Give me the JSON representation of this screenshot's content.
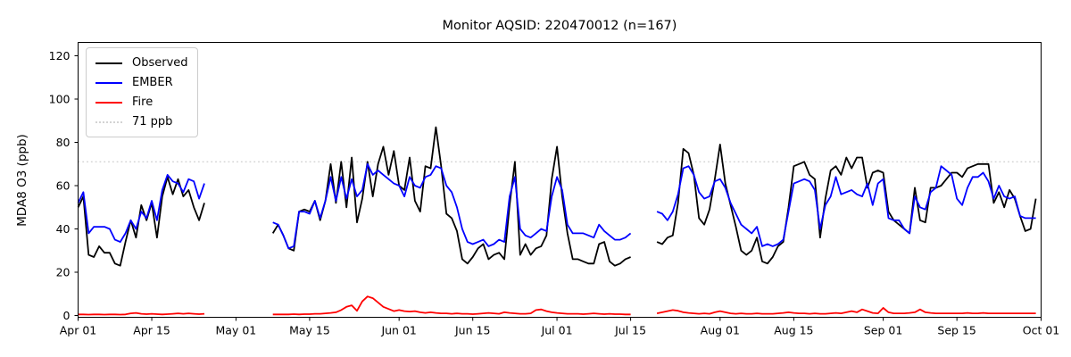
{
  "chart_data": {
    "type": "line",
    "title": "Monitor AQSID: 220470012 (n=167)",
    "xlabel": "",
    "ylabel": "MDA8 O3 (ppb)",
    "n_points": 167,
    "ylim": [
      -1,
      126
    ],
    "yticks": [
      0,
      20,
      40,
      60,
      80,
      100,
      120
    ],
    "xticks": [
      {
        "day": 0,
        "label": "Apr 01"
      },
      {
        "day": 14,
        "label": "Apr 15"
      },
      {
        "day": 30,
        "label": "May 01"
      },
      {
        "day": 44,
        "label": "May 15"
      },
      {
        "day": 61,
        "label": "Jun 01"
      },
      {
        "day": 75,
        "label": "Jun 15"
      },
      {
        "day": 91,
        "label": "Jul 01"
      },
      {
        "day": 105,
        "label": "Jul 15"
      },
      {
        "day": 122,
        "label": "Aug 01"
      },
      {
        "day": 136,
        "label": "Aug 15"
      },
      {
        "day": 153,
        "label": "Sep 01"
      },
      {
        "day": 167,
        "label": "Sep 15"
      },
      {
        "day": 183,
        "label": "Oct 01"
      }
    ],
    "grid": false,
    "legend_position": "upper left",
    "legend": {
      "items": [
        {
          "label": "Observed",
          "color": "#000000",
          "line_style": "solid"
        },
        {
          "label": "EMBER",
          "color": "#0000ff",
          "line_style": "solid"
        },
        {
          "label": "Fire",
          "color": "#ff0000",
          "line_style": "solid"
        },
        {
          "label": "71 ppb",
          "color": "#d3d3d3",
          "line_style": "dotted"
        }
      ]
    },
    "threshold": {
      "value": 71,
      "label": "71 ppb",
      "color": "#d3d3d3",
      "style": "dotted"
    },
    "series": [
      {
        "name": "Observed",
        "color": "#000000",
        "segments": [
          {
            "start_day": 0,
            "start_date": "Apr 01",
            "values": [
              50,
              55,
              28,
              27,
              32,
              29,
              29,
              24,
              23,
              34,
              44,
              36,
              51,
              44,
              52,
              36,
              55,
              64,
              56,
              63,
              55,
              58,
              50,
              44,
              52
            ]
          },
          {
            "start_day": 37,
            "start_date": "May 08",
            "values": [
              38,
              42,
              37,
              31,
              30,
              48,
              49,
              48,
              53,
              44,
              53,
              70,
              52,
              71,
              50,
              73,
              43,
              54,
              71,
              55,
              70,
              78,
              65,
              76,
              60,
              58,
              73,
              53,
              48,
              69,
              68,
              87,
              69,
              47,
              45,
              39,
              26,
              24,
              27,
              31,
              33,
              26,
              28,
              29,
              26,
              51,
              71,
              28,
              33,
              28,
              31,
              32,
              37,
              63,
              78,
              55,
              38,
              26,
              26,
              25,
              24,
              24,
              33,
              34,
              25,
              23,
              24,
              26,
              27
            ]
          },
          {
            "start_day": 110,
            "start_date": "Jul 20",
            "values": [
              34,
              33,
              36,
              37,
              52,
              77,
              75,
              65,
              45,
              42,
              49,
              63,
              79,
              61,
              51,
              41,
              30,
              28,
              30,
              36,
              25,
              24,
              27,
              32,
              34,
              50,
              69,
              70,
              71,
              65,
              63,
              36,
              54,
              67,
              69,
              65,
              73,
              68,
              73,
              73,
              59,
              66,
              67,
              66,
              48,
              44,
              42,
              40,
              38,
              59,
              44,
              43,
              59,
              59,
              60,
              63,
              66,
              66,
              64,
              68,
              69,
              70,
              70,
              70,
              52,
              57,
              50,
              58,
              54,
              46,
              39,
              40,
              54
            ]
          }
        ]
      },
      {
        "name": "EMBER",
        "color": "#0000ff",
        "segments": [
          {
            "start_day": 0,
            "start_date": "Apr 01",
            "values": [
              52,
              57,
              38,
              41,
              41,
              41,
              40,
              35,
              34,
              38,
              44,
              40,
              48,
              45,
              53,
              44,
              58,
              65,
              62,
              61,
              57,
              63,
              62,
              54,
              61
            ]
          },
          {
            "start_day": 37,
            "start_date": "May 08",
            "values": [
              43,
              42,
              37,
              31,
              32,
              48,
              48,
              47,
              53,
              45,
              53,
              64,
              53,
              64,
              54,
              63,
              55,
              58,
              70,
              65,
              67,
              65,
              63,
              61,
              60,
              55,
              64,
              60,
              59,
              64,
              65,
              69,
              68,
              60,
              57,
              50,
              40,
              34,
              33,
              34,
              35,
              32,
              33,
              35,
              34,
              55,
              64,
              40,
              37,
              36,
              38,
              40,
              39,
              55,
              64,
              58,
              42,
              38,
              38,
              38,
              37,
              36,
              42,
              39,
              37,
              35,
              35,
              36,
              38
            ]
          },
          {
            "start_day": 110,
            "start_date": "Jul 20",
            "values": [
              48,
              47,
              44,
              48,
              56,
              68,
              69,
              65,
              57,
              54,
              55,
              62,
              63,
              59,
              52,
              47,
              42,
              40,
              38,
              41,
              32,
              33,
              32,
              33,
              35,
              48,
              61,
              62,
              63,
              62,
              58,
              40,
              51,
              55,
              64,
              56,
              57,
              58,
              56,
              55,
              61,
              51,
              61,
              63,
              45,
              44,
              44,
              40,
              38,
              55,
              50,
              49,
              57,
              59,
              69,
              67,
              65,
              54,
              51,
              59,
              64,
              64,
              66,
              62,
              54,
              60,
              55,
              54,
              55,
              46,
              45,
              45,
              45
            ]
          }
        ]
      },
      {
        "name": "Fire",
        "color": "#ff0000",
        "segments": [
          {
            "start_day": 0,
            "start_date": "Apr 01",
            "values": [
              0.5,
              0.5,
              0.4,
              0.5,
              0.5,
              0.4,
              0.5,
              0.5,
              0.4,
              0.5,
              1.0,
              1.2,
              0.8,
              0.6,
              0.8,
              0.6,
              0.5,
              0.6,
              0.8,
              1.0,
              0.8,
              1.0,
              0.8,
              0.6,
              0.8
            ]
          },
          {
            "start_day": 37,
            "start_date": "May 08",
            "values": [
              0.5,
              0.5,
              0.5,
              0.5,
              0.6,
              0.5,
              0.6,
              0.6,
              0.8,
              0.8,
              1.0,
              1.2,
              1.5,
              2.5,
              4.0,
              4.7,
              2.2,
              6.5,
              8.8,
              8.0,
              6.0,
              4.0,
              3.0,
              2.0,
              2.5,
              2.0,
              1.8,
              2.0,
              1.5,
              1.2,
              1.5,
              1.2,
              1.0,
              1.0,
              0.8,
              1.0,
              0.8,
              0.8,
              0.6,
              0.8,
              1.0,
              1.2,
              1.0,
              0.8,
              1.5,
              1.2,
              1.0,
              0.8,
              0.8,
              1.0,
              2.5,
              2.8,
              2.0,
              1.5,
              1.2,
              1.0,
              0.8,
              0.8,
              0.8,
              0.6,
              0.8,
              1.0,
              0.8,
              0.6,
              0.8,
              0.6,
              0.6,
              0.5,
              0.5
            ]
          },
          {
            "start_day": 110,
            "start_date": "Jul 20",
            "values": [
              1.0,
              1.5,
              2.0,
              2.5,
              2.2,
              1.5,
              1.2,
              1.0,
              0.8,
              1.0,
              0.8,
              1.5,
              2.0,
              1.5,
              1.0,
              0.8,
              1.0,
              0.8,
              0.8,
              1.0,
              0.8,
              0.8,
              0.8,
              1.0,
              1.2,
              1.5,
              1.2,
              1.0,
              1.0,
              0.8,
              1.0,
              0.8,
              0.8,
              1.0,
              1.2,
              1.0,
              1.5,
              2.0,
              1.5,
              2.8,
              2.0,
              1.2,
              1.0,
              3.5,
              1.5,
              1.0,
              1.0,
              1.0,
              1.2,
              1.5,
              2.8,
              1.5,
              1.2,
              1.0,
              1.0,
              1.0,
              1.0,
              1.0,
              1.0,
              1.2,
              1.0,
              1.0,
              1.2,
              1.0,
              1.0,
              1.0,
              1.0,
              1.0,
              1.0,
              1.0,
              1.0,
              1.0,
              1.0
            ]
          }
        ]
      }
    ]
  }
}
